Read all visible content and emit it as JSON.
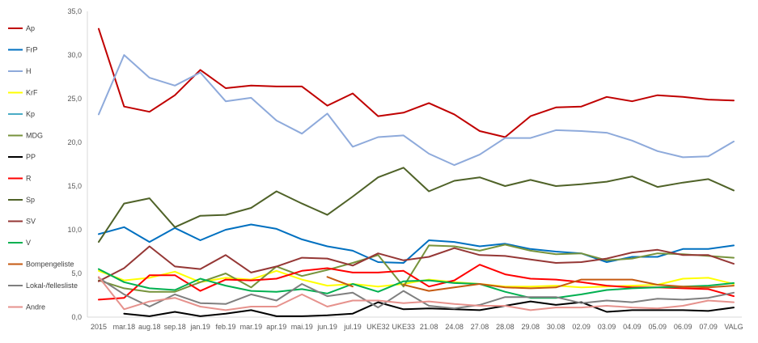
{
  "chart_data": {
    "type": "line",
    "categories": [
      "2015",
      "mar.18",
      "aug.18",
      "sep.18",
      "jan.19",
      "feb.19",
      "mar.19",
      "apr.19",
      "mai.19",
      "jun.19",
      "jul.19",
      "UKE32",
      "UKE33",
      "21.08",
      "24.08",
      "27.08",
      "28.08",
      "29.08",
      "30.08",
      "02.09",
      "03.09",
      "04.09",
      "05.09",
      "06.09",
      "07.09",
      "VALG"
    ],
    "y_ticks": [
      "0,0",
      "5,0",
      "10,0",
      "15,0",
      "20,0",
      "25,0",
      "30,0",
      "35,0"
    ],
    "ylim": [
      0,
      35
    ],
    "grid": false,
    "legend_position": "left",
    "series": [
      {
        "name": "Ap",
        "color": "#c00000",
        "values": [
          33.0,
          24.1,
          23.5,
          25.4,
          28.3,
          26.2,
          26.5,
          26.4,
          26.4,
          24.2,
          25.6,
          23.0,
          23.4,
          24.5,
          23.2,
          21.3,
          20.6,
          23.0,
          24.0,
          24.1,
          25.2,
          24.7,
          25.4,
          25.2,
          24.9,
          24.8
        ]
      },
      {
        "name": "FrP",
        "color": "#0070c0",
        "values": [
          9.5,
          10.3,
          8.6,
          10.2,
          8.8,
          10.0,
          10.6,
          10.1,
          8.9,
          8.1,
          7.6,
          6.3,
          6.2,
          8.8,
          8.6,
          8.1,
          8.4,
          7.8,
          7.5,
          7.3,
          6.3,
          6.9,
          6.9,
          7.8,
          7.8,
          8.2
        ]
      },
      {
        "name": "H",
        "color": "#8eaadb",
        "values": [
          23.2,
          30.0,
          27.4,
          26.5,
          28.0,
          24.7,
          25.1,
          22.5,
          21.0,
          23.3,
          19.5,
          20.6,
          20.8,
          18.7,
          17.4,
          18.6,
          20.5,
          20.5,
          21.4,
          21.3,
          21.1,
          20.2,
          19.0,
          18.3,
          18.4,
          20.1
        ]
      },
      {
        "name": "KrF",
        "color": "#ffff00",
        "values": [
          5.3,
          4.2,
          4.5,
          5.2,
          4.0,
          4.5,
          4.3,
          5.3,
          4.3,
          3.6,
          3.8,
          3.5,
          3.8,
          4.3,
          4.0,
          3.8,
          3.5,
          3.5,
          3.6,
          3.4,
          3.5,
          3.6,
          3.7,
          4.4,
          4.5,
          3.8
        ]
      },
      {
        "name": "Kp",
        "color": "#4bacc6",
        "values": [
          null,
          null,
          null,
          null,
          null,
          null,
          null,
          null,
          null,
          null,
          null,
          null,
          null,
          null,
          null,
          null,
          null,
          null,
          null,
          null,
          null,
          null,
          null,
          null,
          null,
          null
        ]
      },
      {
        "name": "MDG",
        "color": "#77933c",
        "values": [
          4.2,
          3.3,
          2.9,
          2.9,
          4.0,
          5.0,
          3.4,
          5.8,
          4.7,
          5.4,
          6.2,
          7.1,
          3.5,
          8.2,
          8.1,
          7.6,
          8.3,
          7.6,
          7.2,
          7.3,
          6.5,
          6.7,
          7.3,
          7.2,
          7.0,
          6.8
        ]
      },
      {
        "name": "PP",
        "color": "#000000",
        "values": [
          null,
          0.4,
          0.1,
          0.6,
          0.1,
          0.4,
          0.8,
          0.1,
          0.1,
          0.2,
          0.4,
          1.7,
          0.9,
          1.0,
          0.9,
          0.8,
          1.3,
          1.8,
          1.4,
          1.7,
          0.6,
          0.8,
          0.8,
          0.8,
          0.7,
          1.1
        ]
      },
      {
        "name": "R",
        "color": "#ff0000",
        "values": [
          2.0,
          2.2,
          4.8,
          4.8,
          3.0,
          4.3,
          4.2,
          4.4,
          5.3,
          5.6,
          5.1,
          5.1,
          5.3,
          3.5,
          4.2,
          6.0,
          4.9,
          4.4,
          4.3,
          4.0,
          3.6,
          3.4,
          3.4,
          3.3,
          3.2,
          2.4
        ]
      },
      {
        "name": "Sp",
        "color": "#4f6228",
        "values": [
          8.6,
          13.0,
          13.6,
          10.3,
          11.6,
          11.7,
          12.5,
          14.4,
          13.0,
          11.7,
          13.8,
          16.0,
          17.1,
          14.4,
          15.6,
          16.0,
          15.0,
          15.7,
          15.0,
          15.2,
          15.5,
          16.1,
          14.9,
          15.4,
          15.8,
          14.5
        ]
      },
      {
        "name": "SV",
        "color": "#953735",
        "values": [
          4.1,
          5.6,
          8.1,
          5.8,
          5.5,
          7.1,
          5.1,
          5.8,
          6.8,
          6.7,
          5.9,
          7.3,
          6.5,
          6.9,
          7.9,
          7.1,
          7.0,
          6.6,
          6.2,
          6.3,
          6.7,
          7.4,
          7.7,
          7.1,
          7.1,
          6.1
        ]
      },
      {
        "name": "V",
        "color": "#00b050",
        "values": [
          5.5,
          4.0,
          3.3,
          3.1,
          4.4,
          3.6,
          3.0,
          2.9,
          3.2,
          2.7,
          3.8,
          2.9,
          4.1,
          4.2,
          3.9,
          3.8,
          2.9,
          2.2,
          2.2,
          2.6,
          3.1,
          3.3,
          3.4,
          3.5,
          3.6,
          3.9
        ]
      },
      {
        "name": "Bompengeliste",
        "color": "#c55a11",
        "values": [
          null,
          null,
          null,
          null,
          null,
          null,
          null,
          null,
          null,
          4.6,
          3.5,
          null,
          3.7,
          3.0,
          3.4,
          3.8,
          3.4,
          3.3,
          3.4,
          4.3,
          4.3,
          4.3,
          3.7,
          3.5,
          3.4,
          3.6
        ]
      },
      {
        "name": "Lokal-/fellesliste",
        "color": "#7f7f7f",
        "values": [
          4.5,
          2.6,
          1.2,
          2.6,
          1.6,
          1.5,
          2.6,
          1.9,
          3.8,
          2.4,
          2.8,
          1.1,
          3.0,
          1.3,
          1.0,
          1.4,
          2.3,
          2.3,
          2.3,
          1.6,
          1.9,
          1.7,
          2.1,
          2.0,
          2.2,
          2.8
        ]
      },
      {
        "name": "Andre",
        "color": "#e6928d",
        "values": [
          4.6,
          0.9,
          1.8,
          2.2,
          1.2,
          0.8,
          1.2,
          1.2,
          2.6,
          1.2,
          1.9,
          1.9,
          1.6,
          1.8,
          1.5,
          1.3,
          1.3,
          0.8,
          1.1,
          1.1,
          1.3,
          1.1,
          1.0,
          1.3,
          1.9,
          1.7
        ]
      }
    ]
  }
}
